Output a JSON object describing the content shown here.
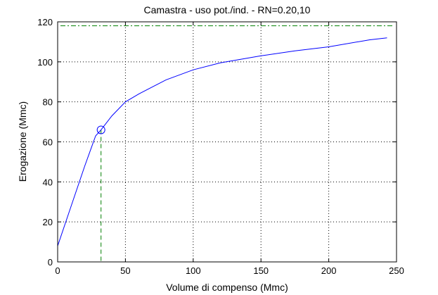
{
  "chart_data": {
    "type": "line",
    "title": "Camastra  -  uso pot./ind.  -   RN=0.20,10",
    "xlabel": "Volume di compenso (Mmc)",
    "ylabel": "Erogazione (Mmc)",
    "xlim": [
      0,
      250
    ],
    "ylim": [
      0,
      120
    ],
    "xticks": [
      "0",
      "50",
      "100",
      "150",
      "200",
      "250"
    ],
    "yticks": [
      "0",
      "20",
      "40",
      "60",
      "80",
      "100",
      "120"
    ],
    "grid": true,
    "colors": {
      "curve": "#0000ff",
      "reference": "#008000",
      "marker": "#0000ff"
    },
    "series": [
      {
        "values_x": [
          0,
          10,
          20,
          28,
          32,
          40,
          50,
          60,
          80,
          100,
          120,
          150,
          175,
          200,
          230,
          243
        ],
        "values_y": [
          8,
          28,
          48,
          63,
          66,
          73,
          80,
          84,
          91,
          96,
          99.5,
          103,
          105.5,
          107.5,
          111,
          112
        ]
      }
    ],
    "marker_point": {
      "x": 32,
      "y": 66
    },
    "horizontal_reference": {
      "y": 118
    },
    "vertical_reference": {
      "x": 32
    }
  }
}
